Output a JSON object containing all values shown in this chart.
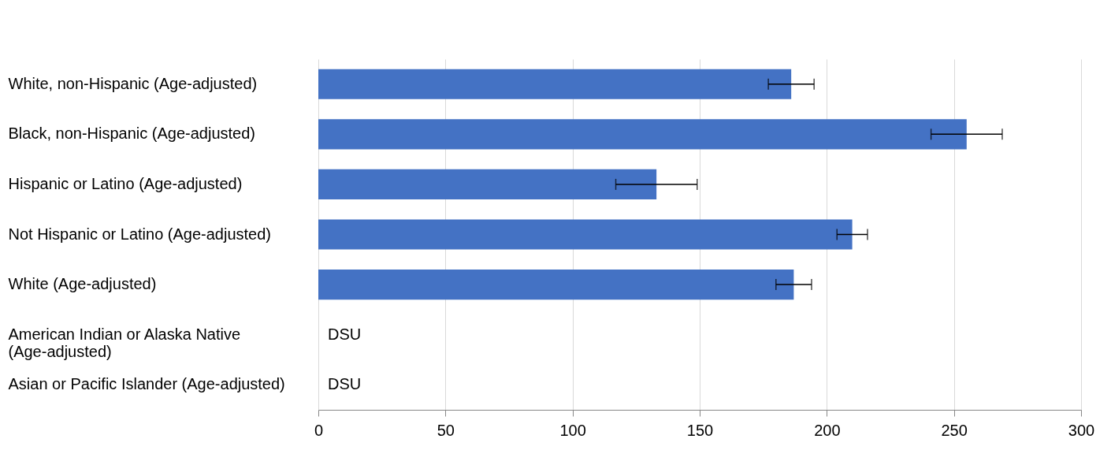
{
  "chart_data": {
    "type": "bar",
    "orientation": "horizontal",
    "categories": [
      "White, non-Hispanic (Age-adjusted)",
      "Black, non-Hispanic (Age-adjusted)",
      "Hispanic or Latino (Age-adjusted)",
      "Not Hispanic or Latino (Age-adjusted)",
      "White (Age-adjusted)",
      "American Indian or Alaska Native (Age-adjusted)",
      "Asian or Pacific Islander (Age-adjusted)"
    ],
    "values": [
      186,
      255,
      133,
      210,
      187,
      null,
      null
    ],
    "errors": [
      [
        177,
        195
      ],
      [
        241,
        269
      ],
      [
        117,
        149
      ],
      [
        204,
        216
      ],
      [
        180,
        194
      ],
      null,
      null
    ],
    "value_labels": [
      null,
      null,
      null,
      null,
      null,
      "DSU",
      "DSU"
    ],
    "color": "#4472c4",
    "xlim": [
      0,
      300
    ],
    "xticks": [
      0,
      50,
      100,
      150,
      200,
      250,
      300
    ],
    "grid": "x"
  }
}
